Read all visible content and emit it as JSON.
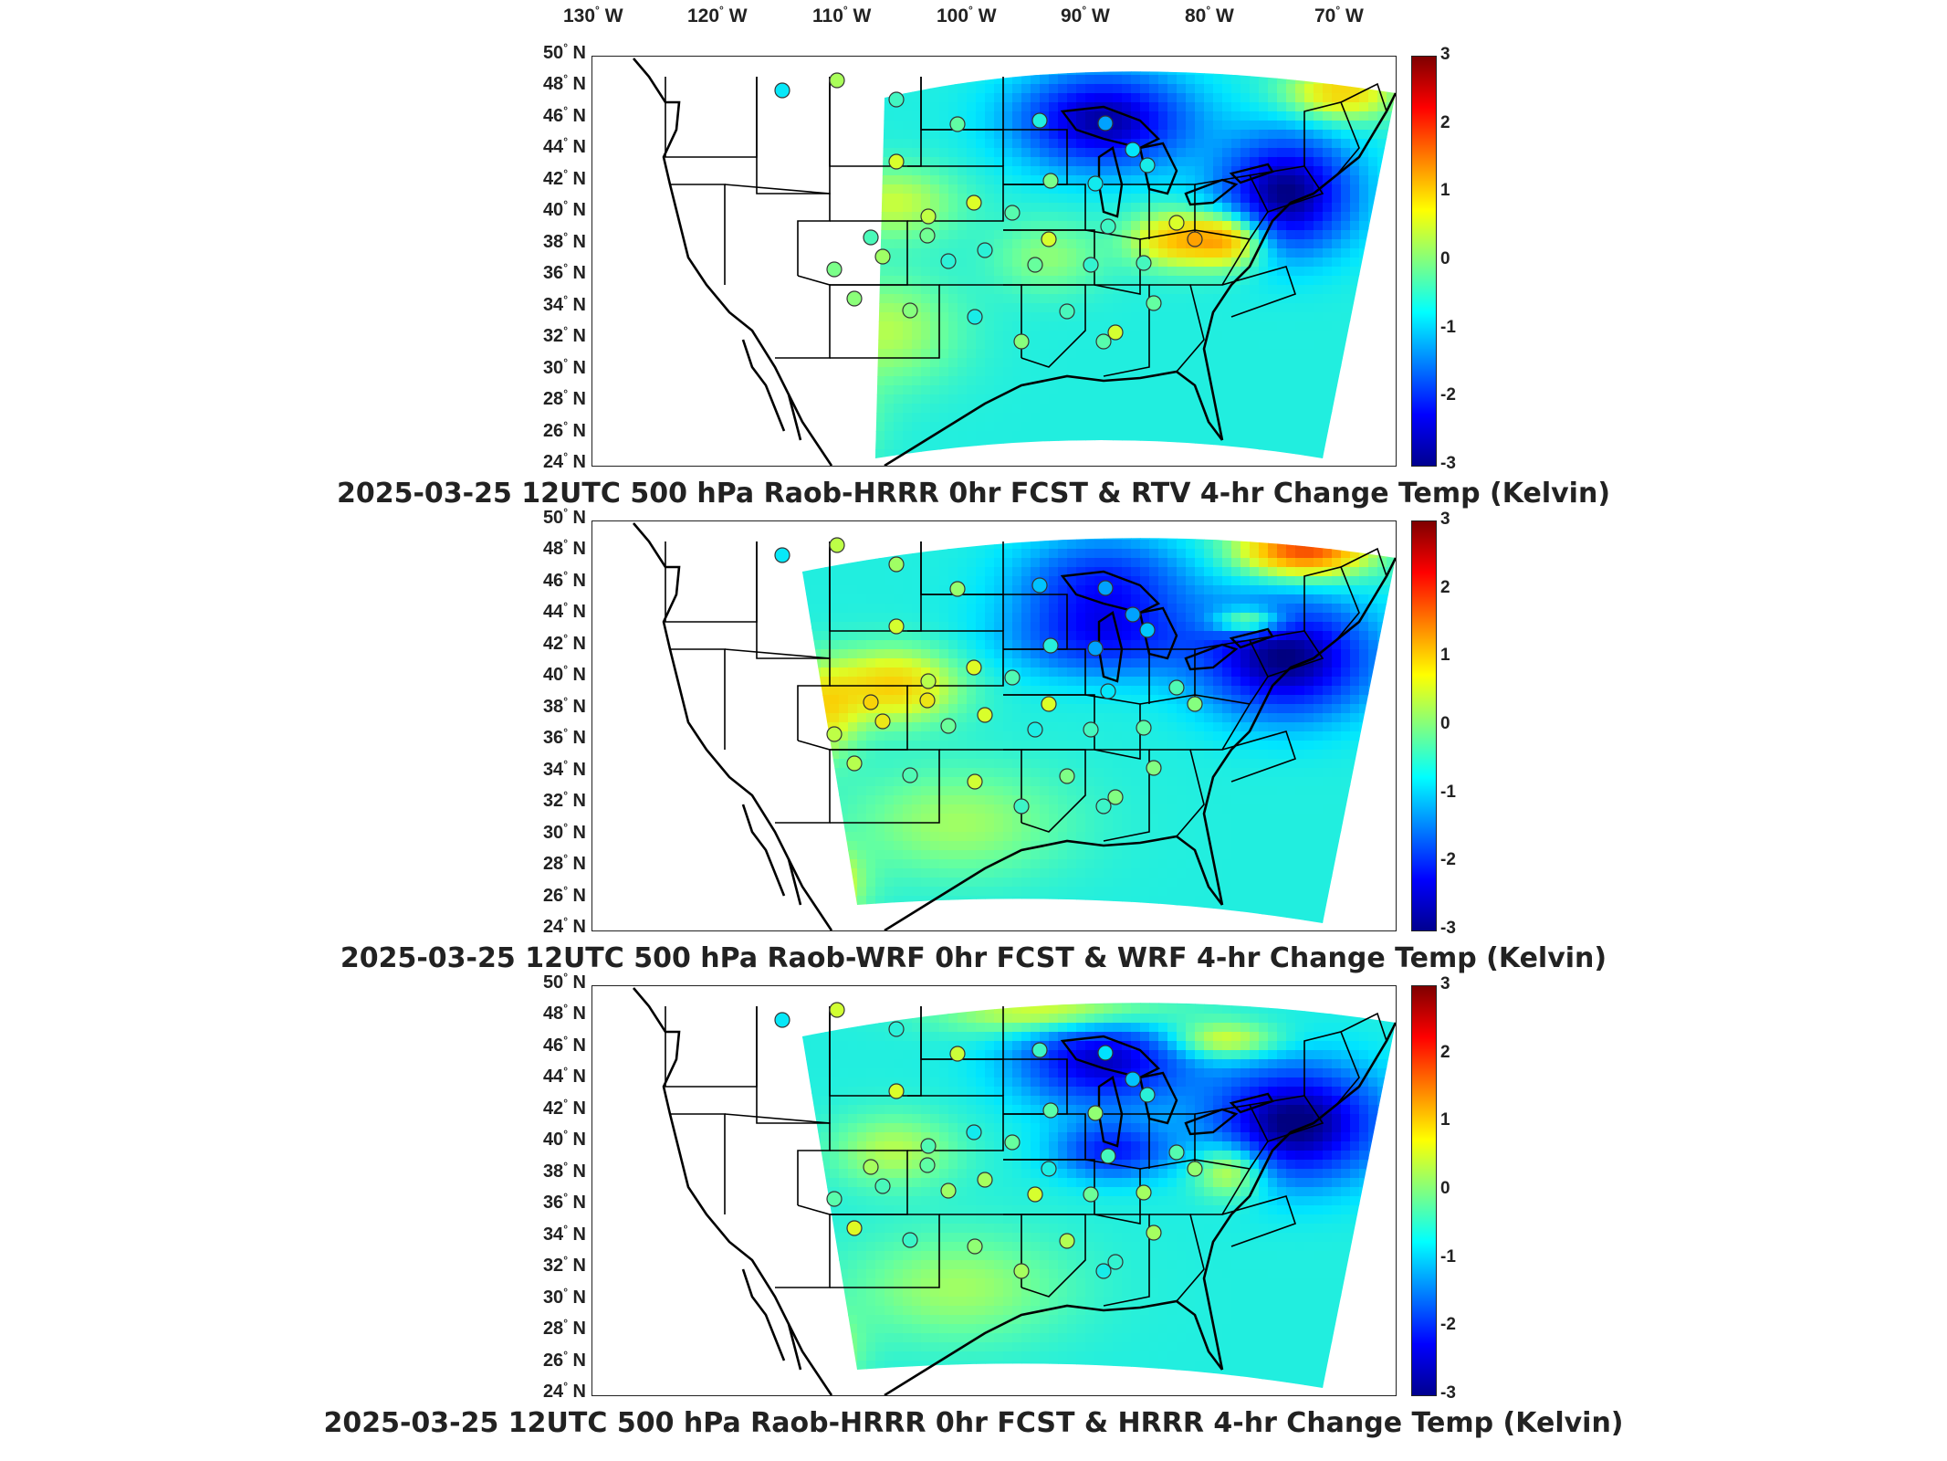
{
  "colorbar": {
    "ticks": [
      "3",
      "2",
      "1",
      "0",
      "-1",
      "-2",
      "-3"
    ],
    "colors": [
      "#7f0000",
      "#ff0000",
      "#ff8000",
      "#ffff00",
      "#80ff80",
      "#00ffff",
      "#0080ff",
      "#0000ff",
      "#00008f"
    ]
  },
  "lon_ticks": [
    "130",
    "120",
    "110",
    "100",
    "90",
    "80",
    "70"
  ],
  "lon_unit": "W",
  "lat_ticks": [
    "50",
    "48",
    "46",
    "44",
    "42",
    "40",
    "38",
    "36",
    "34",
    "32",
    "30",
    "28",
    "26",
    "24"
  ],
  "lat_unit": "N",
  "panels": [
    {
      "title": "2025-03-25 12UTC 500 hPa Raob-HRRR 0hr FCST & RTV 4-hr Change Temp (Kelvin)",
      "field_style": "rtv"
    },
    {
      "title": "2025-03-25 12UTC 500 hPa Raob-WRF 0hr FCST & WRF 4-hr Change Temp (Kelvin)",
      "field_style": "wrf"
    },
    {
      "title": "2025-03-25 12UTC 500 hPa Raob-HRRR 0hr FCST & HRRR 4-hr Change Temp (Kelvin)",
      "field_style": "hrrr"
    }
  ],
  "colors": {
    "background": "#ffffff",
    "land_outline": "#000000",
    "warm": "#ff3300",
    "cold": "#0000aa",
    "neutral": "#40e0d0"
  }
}
